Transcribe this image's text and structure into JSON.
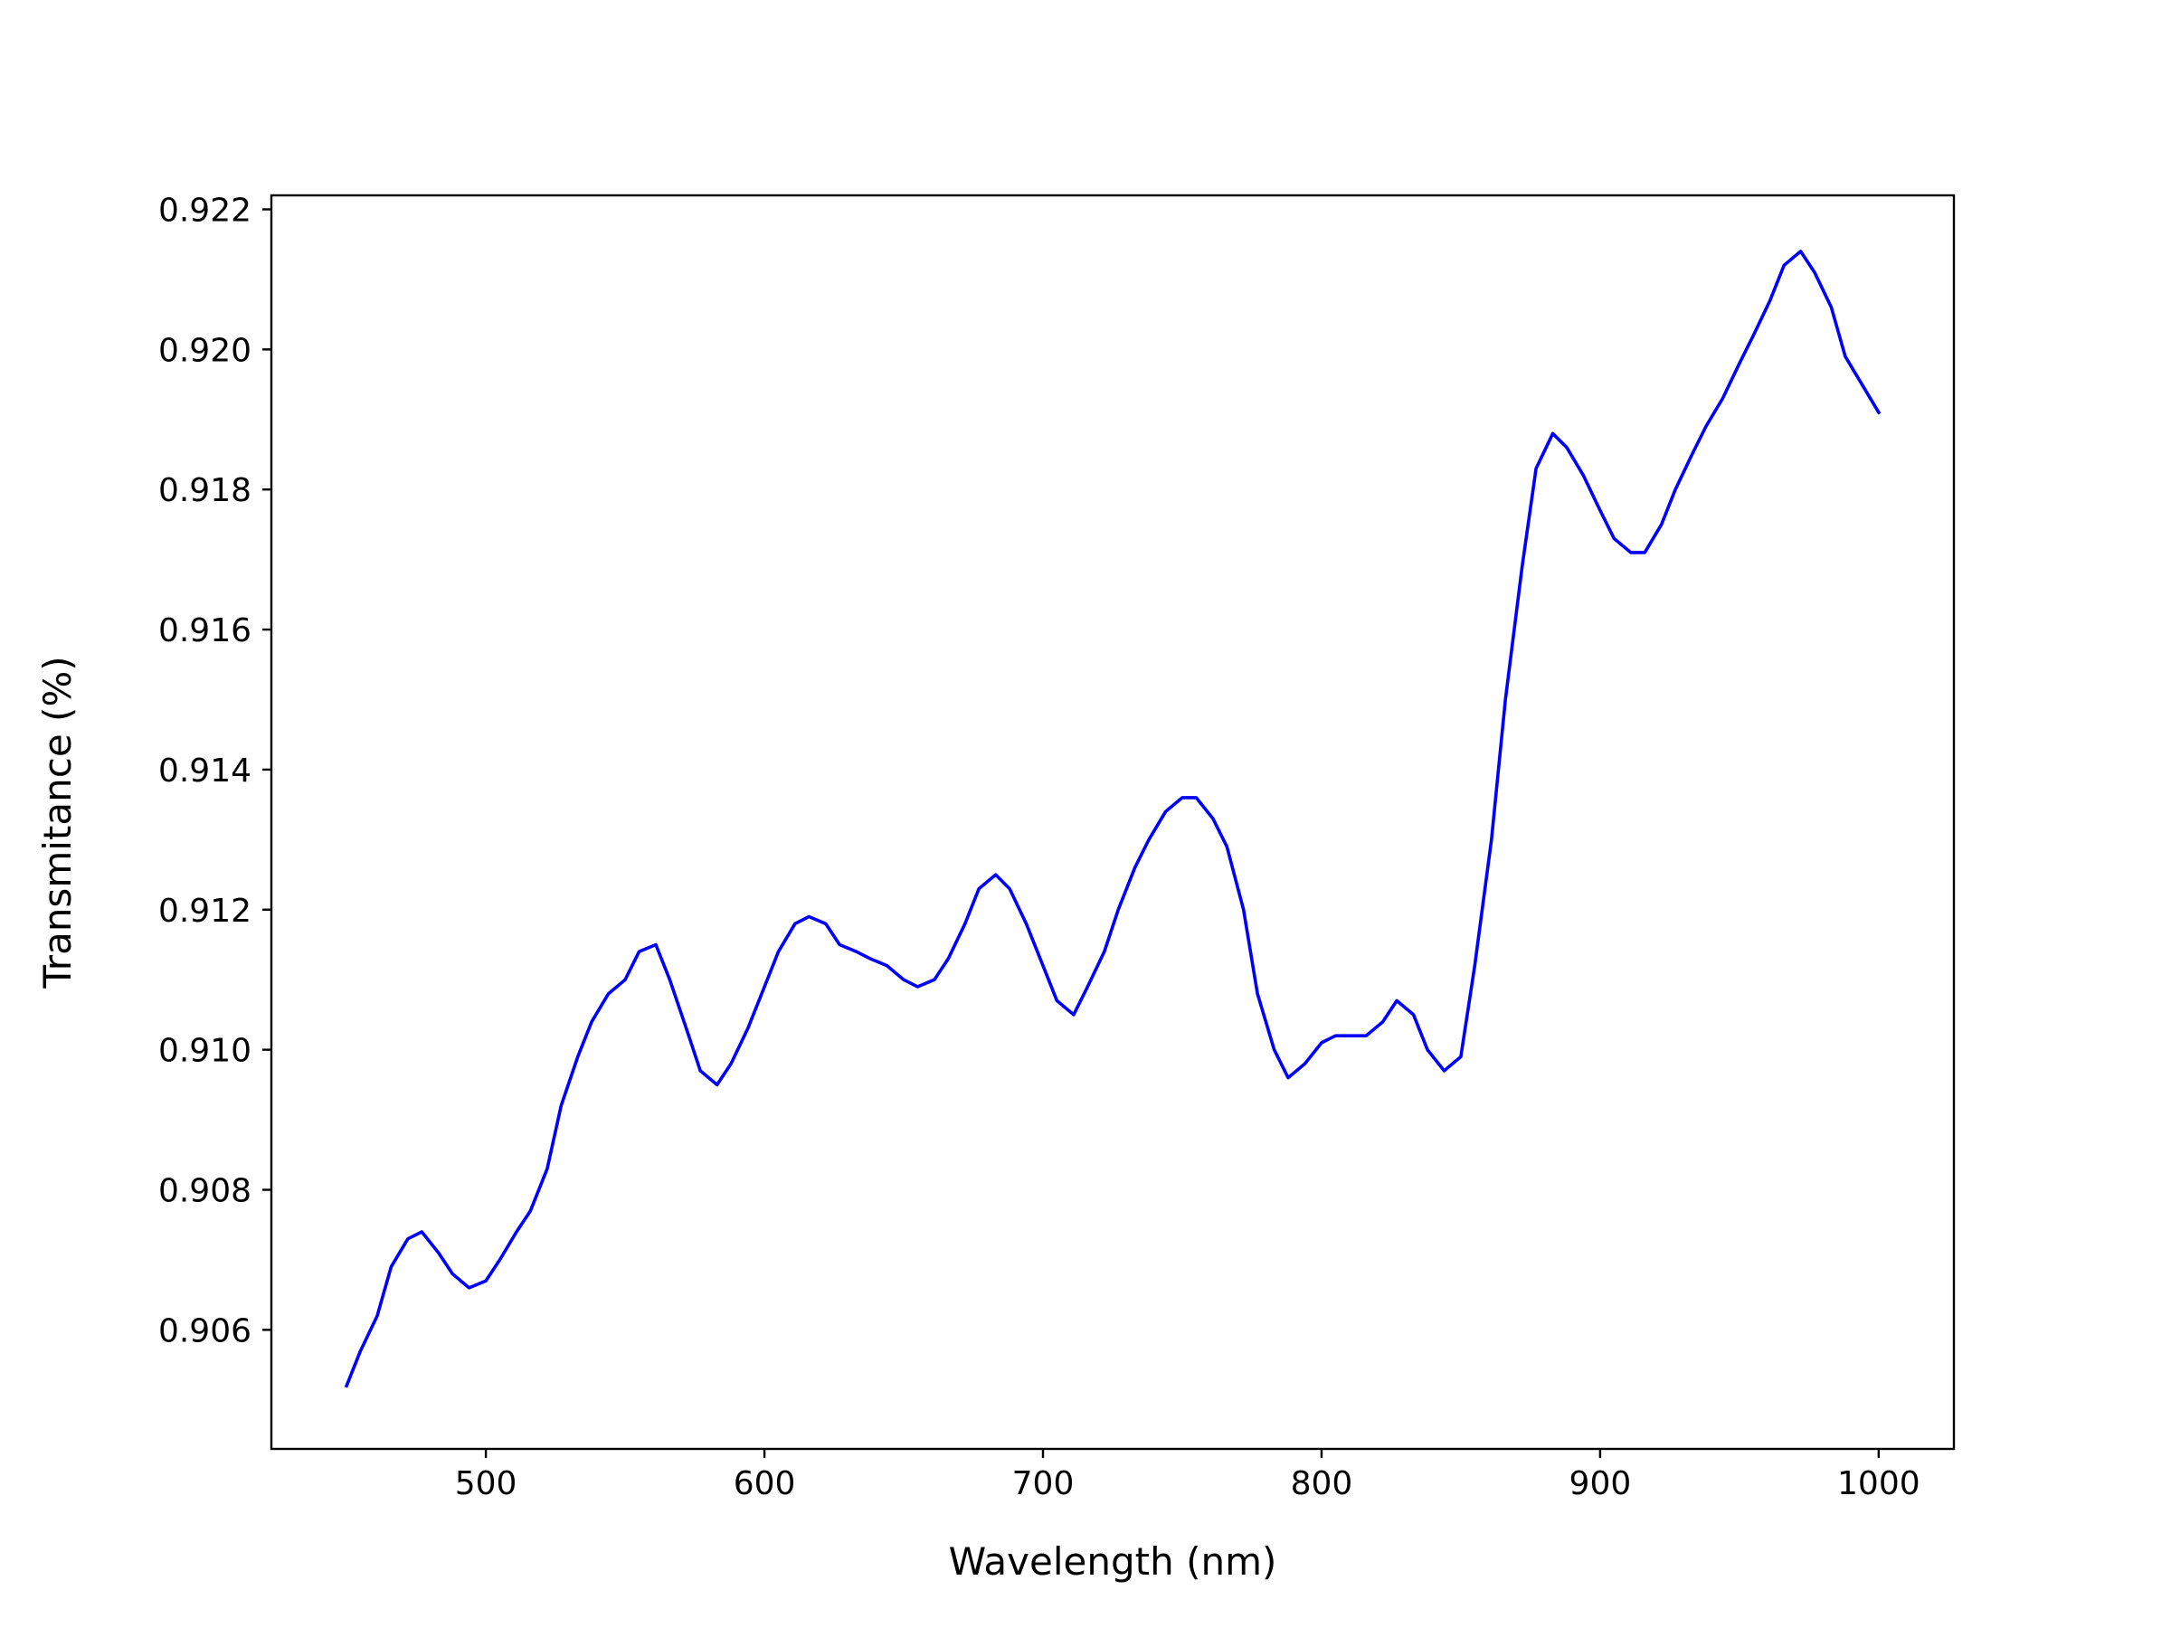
{
  "chart_data": {
    "type": "line",
    "title": "",
    "xlabel": "Wavelength (nm)",
    "ylabel": "Transmitance (%)",
    "xlim": [
      423,
      1027
    ],
    "ylim": [
      0.9043,
      0.9222
    ],
    "xticks": [
      500,
      600,
      700,
      800,
      900,
      1000
    ],
    "xtick_labels": [
      "500",
      "600",
      "700",
      "800",
      "900",
      "1000"
    ],
    "yticks": [
      0.906,
      0.908,
      0.91,
      0.912,
      0.914,
      0.916,
      0.918,
      0.92,
      0.922
    ],
    "ytick_labels": [
      "0.906",
      "0.908",
      "0.910",
      "0.912",
      "0.914",
      "0.916",
      "0.918",
      "0.920",
      "0.922"
    ],
    "grid": false,
    "legend": "none",
    "series": [
      {
        "color": "#0000ff",
        "x": [
          450,
          455,
          461,
          466,
          472,
          477,
          483,
          488,
          494,
          500,
          505,
          511,
          516,
          522,
          527,
          533,
          538,
          544,
          550,
          555,
          561,
          566,
          572,
          577,
          583,
          588,
          594,
          600,
          605,
          611,
          616,
          622,
          627,
          633,
          638,
          644,
          650,
          655,
          661,
          666,
          672,
          677,
          683,
          688,
          694,
          700,
          705,
          711,
          716,
          722,
          727,
          733,
          738,
          744,
          750,
          755,
          761,
          766,
          772,
          777,
          783,
          788,
          794,
          800,
          805,
          811,
          816,
          822,
          827,
          833,
          838,
          844,
          850,
          855,
          861,
          866,
          872,
          877,
          883,
          888,
          894,
          900,
          905,
          911,
          916,
          922,
          927,
          933,
          938,
          944,
          950,
          955,
          961,
          966,
          972,
          977,
          983,
          988,
          994,
          1000
        ],
        "y": [
          0.9052,
          0.9057,
          0.9062,
          0.9069,
          0.9073,
          0.9074,
          0.9071,
          0.9068,
          0.9066,
          0.9067,
          0.907,
          0.9074,
          0.9077,
          0.9083,
          0.9092,
          0.9099,
          0.9104,
          0.9108,
          0.911,
          0.9114,
          0.9115,
          0.911,
          0.9103,
          0.9097,
          0.9095,
          0.9098,
          0.9103,
          0.9109,
          0.9114,
          0.9118,
          0.9119,
          0.9118,
          0.9115,
          0.9114,
          0.9113,
          0.9112,
          0.911,
          0.9109,
          0.911,
          0.9113,
          0.9118,
          0.9123,
          0.9125,
          0.9123,
          0.9118,
          0.9112,
          0.9107,
          0.9105,
          0.9109,
          0.9114,
          0.912,
          0.9126,
          0.913,
          0.9134,
          0.9136,
          0.9136,
          0.9133,
          0.9129,
          0.912,
          0.9108,
          0.91,
          0.9096,
          0.9098,
          0.9101,
          0.9102,
          0.9102,
          0.9102,
          0.9104,
          0.9107,
          0.9105,
          0.91,
          0.9097,
          0.9099,
          0.9112,
          0.913,
          0.915,
          0.9169,
          0.9183,
          0.9188,
          0.9186,
          0.9182,
          0.9177,
          0.9173,
          0.9171,
          0.9171,
          0.9175,
          0.918,
          0.9185,
          0.9189,
          0.9193,
          0.9198,
          0.9202,
          0.9207,
          0.9212,
          0.9214,
          0.9211,
          0.9206,
          0.9199,
          0.9195,
          0.9191
        ]
      }
    ]
  }
}
